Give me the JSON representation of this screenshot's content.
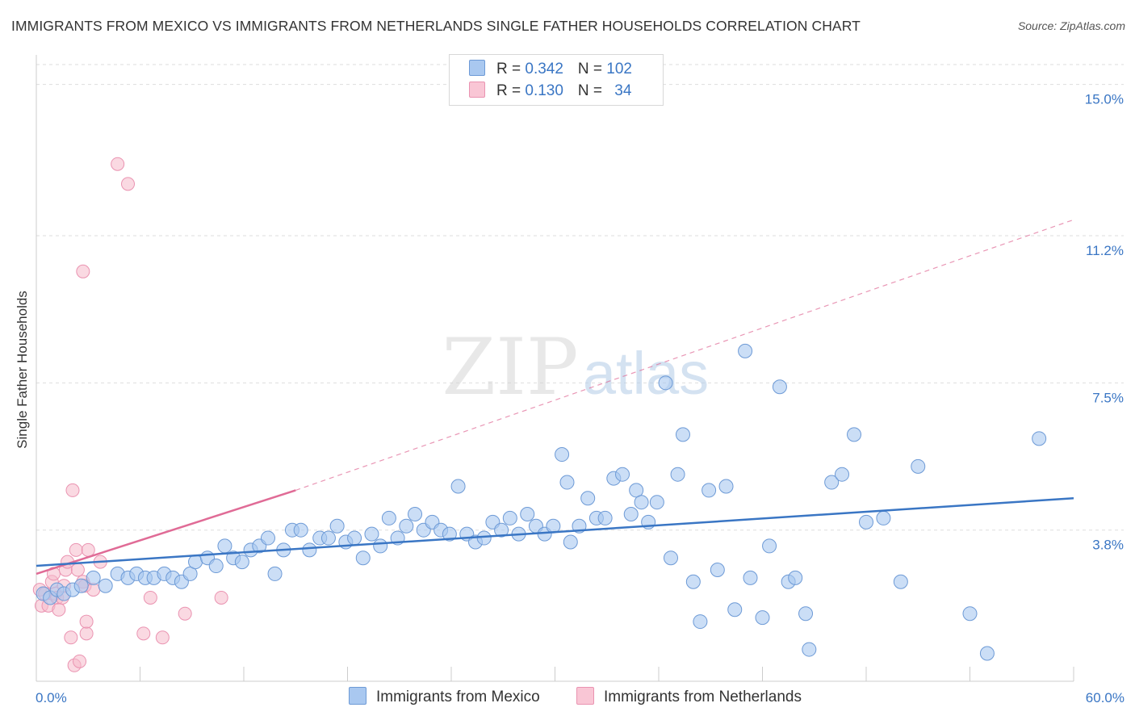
{
  "title": "IMMIGRANTS FROM MEXICO VS IMMIGRANTS FROM NETHERLANDS SINGLE FATHER HOUSEHOLDS CORRELATION CHART",
  "source": "Source: ZipAtlas.com",
  "watermark": {
    "zip": "ZIP",
    "atlas": "atlas"
  },
  "colors": {
    "blue": "#3a76c4",
    "blue_fill": "#a9c8f0",
    "pink": "#e06b96",
    "pink_fill": "#f6b9cb",
    "grid": "#dddddd"
  },
  "legend": {
    "rows": [
      {
        "r_label": "R = ",
        "r_value": "0.342",
        "n_label": "N = ",
        "n_value": "102"
      },
      {
        "r_label": "R = ",
        "r_value": "0.130",
        "n_label": "N = ",
        "n_value": "34"
      }
    ]
  },
  "bottom_legend": {
    "mexico": "Immigrants from Mexico",
    "netherlands": "Immigrants from Netherlands"
  },
  "chart_data": {
    "type": "scatter",
    "title": "IMMIGRANTS FROM MEXICO VS IMMIGRANTS FROM NETHERLANDS SINGLE FATHER HOUSEHOLDS CORRELATION CHART",
    "xlabel": "",
    "ylabel": "Single Father Households",
    "xlim": [
      0,
      60
    ],
    "ylim": [
      0,
      15.5
    ],
    "x_tick_labels": [
      "0.0%",
      "60.0%"
    ],
    "y_ticks": [
      3.8,
      7.5,
      11.2,
      15.0
    ],
    "y_tick_labels": [
      "3.8%",
      "7.5%",
      "11.2%",
      "15.0%"
    ],
    "grid": true,
    "series": [
      {
        "name": "Immigrants from Mexico",
        "r": 0.342,
        "n": 102,
        "trend": {
          "x": [
            0,
            60
          ],
          "y": [
            2.9,
            4.6
          ],
          "style": "solid"
        },
        "points": [
          [
            0.4,
            2.2
          ],
          [
            0.8,
            2.1
          ],
          [
            1.2,
            2.3
          ],
          [
            1.6,
            2.2
          ],
          [
            2.1,
            2.3
          ],
          [
            2.6,
            2.4
          ],
          [
            3.3,
            2.6
          ],
          [
            4.0,
            2.4
          ],
          [
            4.7,
            2.7
          ],
          [
            5.3,
            2.6
          ],
          [
            5.8,
            2.7
          ],
          [
            6.3,
            2.6
          ],
          [
            6.8,
            2.6
          ],
          [
            7.4,
            2.7
          ],
          [
            7.9,
            2.6
          ],
          [
            8.4,
            2.5
          ],
          [
            8.9,
            2.7
          ],
          [
            9.2,
            3.0
          ],
          [
            9.9,
            3.1
          ],
          [
            10.4,
            2.9
          ],
          [
            10.9,
            3.4
          ],
          [
            11.4,
            3.1
          ],
          [
            11.9,
            3.0
          ],
          [
            12.4,
            3.3
          ],
          [
            12.9,
            3.4
          ],
          [
            13.4,
            3.6
          ],
          [
            13.8,
            2.7
          ],
          [
            14.3,
            3.3
          ],
          [
            14.8,
            3.8
          ],
          [
            15.3,
            3.8
          ],
          [
            15.8,
            3.3
          ],
          [
            16.4,
            3.6
          ],
          [
            16.9,
            3.6
          ],
          [
            17.4,
            3.9
          ],
          [
            17.9,
            3.5
          ],
          [
            18.4,
            3.6
          ],
          [
            18.9,
            3.1
          ],
          [
            19.4,
            3.7
          ],
          [
            19.9,
            3.4
          ],
          [
            20.4,
            4.1
          ],
          [
            20.9,
            3.6
          ],
          [
            21.4,
            3.9
          ],
          [
            21.9,
            4.2
          ],
          [
            22.4,
            3.8
          ],
          [
            22.9,
            4.0
          ],
          [
            23.4,
            3.8
          ],
          [
            23.9,
            3.7
          ],
          [
            24.4,
            4.9
          ],
          [
            24.9,
            3.7
          ],
          [
            25.4,
            3.5
          ],
          [
            25.9,
            3.6
          ],
          [
            26.4,
            4.0
          ],
          [
            26.9,
            3.8
          ],
          [
            27.4,
            4.1
          ],
          [
            27.9,
            3.7
          ],
          [
            28.4,
            4.2
          ],
          [
            28.9,
            3.9
          ],
          [
            29.4,
            3.7
          ],
          [
            29.9,
            3.9
          ],
          [
            30.4,
            5.7
          ],
          [
            30.7,
            5.0
          ],
          [
            30.9,
            3.5
          ],
          [
            31.4,
            3.9
          ],
          [
            31.9,
            4.6
          ],
          [
            32.4,
            4.1
          ],
          [
            32.9,
            4.1
          ],
          [
            33.4,
            5.1
          ],
          [
            33.9,
            5.2
          ],
          [
            34.4,
            4.2
          ],
          [
            34.7,
            4.8
          ],
          [
            35.0,
            4.5
          ],
          [
            35.4,
            4.0
          ],
          [
            35.9,
            4.5
          ],
          [
            36.4,
            7.5
          ],
          [
            36.7,
            3.1
          ],
          [
            37.1,
            5.2
          ],
          [
            37.4,
            6.2
          ],
          [
            38.0,
            2.5
          ],
          [
            38.4,
            1.5
          ],
          [
            38.9,
            4.8
          ],
          [
            39.4,
            2.8
          ],
          [
            39.9,
            4.9
          ],
          [
            40.4,
            1.8
          ],
          [
            41.0,
            8.3
          ],
          [
            41.3,
            2.6
          ],
          [
            42.0,
            1.6
          ],
          [
            42.4,
            3.4
          ],
          [
            43.0,
            7.4
          ],
          [
            43.5,
            2.5
          ],
          [
            43.9,
            2.6
          ],
          [
            44.5,
            1.7
          ],
          [
            44.7,
            0.8
          ],
          [
            46.0,
            5.0
          ],
          [
            46.6,
            5.2
          ],
          [
            47.3,
            6.2
          ],
          [
            48.0,
            4.0
          ],
          [
            49.0,
            4.1
          ],
          [
            50.0,
            2.5
          ],
          [
            51.0,
            5.4
          ],
          [
            54.0,
            1.7
          ],
          [
            55.0,
            0.7
          ],
          [
            58.0,
            6.1
          ]
        ]
      },
      {
        "name": "Immigrants from Netherlands",
        "r": 0.13,
        "n": 34,
        "trend": {
          "x": [
            0,
            15
          ],
          "y": [
            2.7,
            4.8
          ],
          "style": "solid",
          "extension": {
            "x": [
              15,
              60
            ],
            "y": [
              4.8,
              11.6
            ],
            "style": "dashed"
          }
        },
        "points": [
          [
            0.2,
            2.3
          ],
          [
            0.3,
            1.9
          ],
          [
            0.5,
            2.2
          ],
          [
            0.7,
            1.9
          ],
          [
            0.9,
            2.5
          ],
          [
            1.0,
            2.7
          ],
          [
            1.1,
            2.2
          ],
          [
            1.2,
            2.1
          ],
          [
            1.3,
            1.8
          ],
          [
            1.5,
            2.1
          ],
          [
            1.6,
            2.4
          ],
          [
            1.7,
            2.8
          ],
          [
            1.8,
            3.0
          ],
          [
            2.0,
            1.1
          ],
          [
            2.1,
            4.8
          ],
          [
            2.2,
            0.4
          ],
          [
            2.3,
            3.3
          ],
          [
            2.4,
            2.8
          ],
          [
            2.5,
            0.5
          ],
          [
            2.7,
            2.5
          ],
          [
            2.7,
            10.3
          ],
          [
            2.8,
            2.4
          ],
          [
            2.9,
            1.2
          ],
          [
            2.9,
            1.5
          ],
          [
            3.0,
            3.3
          ],
          [
            3.3,
            2.3
          ],
          [
            3.7,
            3.0
          ],
          [
            4.7,
            13.0
          ],
          [
            5.3,
            12.5
          ],
          [
            6.2,
            1.2
          ],
          [
            6.6,
            2.1
          ],
          [
            7.3,
            1.1
          ],
          [
            8.6,
            1.7
          ],
          [
            10.7,
            2.1
          ]
        ]
      }
    ]
  }
}
